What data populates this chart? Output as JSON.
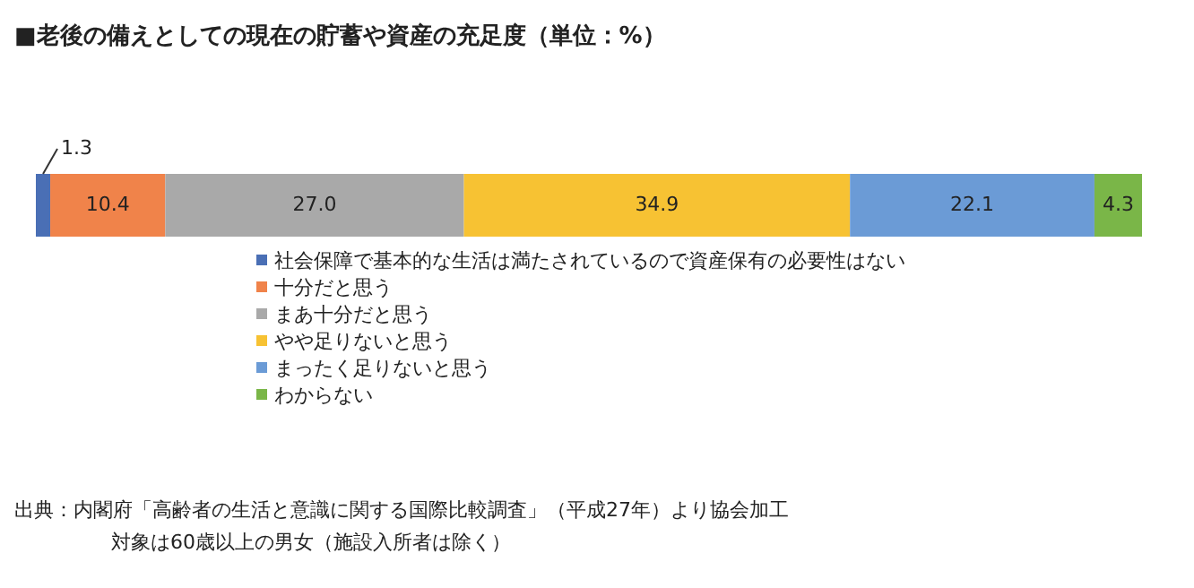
{
  "chart_data": {
    "type": "bar",
    "orientation": "horizontal",
    "stacked": true,
    "legend": "bottom",
    "title": "■老後の備えとしての現在の貯蓄や資産の充足度（単位：%）",
    "categories": [
      null
    ],
    "series": [
      {
        "name": "社会保障で基本的な生活は満たされているので資産保有の必要性はない",
        "color": "#4a6fb5",
        "values": [
          1.3
        ],
        "value_labels": [
          "1.3"
        ]
      },
      {
        "name": "十分だと思う",
        "color": "#f0834a",
        "values": [
          10.4
        ],
        "value_labels": [
          "10.4"
        ]
      },
      {
        "name": "まあ十分だと思う",
        "color": "#a9a9a9",
        "values": [
          27.0
        ],
        "value_labels": [
          "27.0"
        ]
      },
      {
        "name": "やや足りないと思う",
        "color": "#f7c233",
        "values": [
          34.9
        ],
        "value_labels": [
          "34.9"
        ]
      },
      {
        "name": "まったく足りないと思う",
        "color": "#6b9bd6",
        "values": [
          22.1
        ],
        "value_labels": [
          "22.1"
        ]
      },
      {
        "name": "わからない",
        "color": "#7ab648",
        "values": [
          4.3
        ],
        "value_labels": [
          "4.3"
        ]
      }
    ],
    "annotations": [
      "出典：内閣府「高齢者の生活と意識に関する国際比較調査」（平成27年）より協会加工",
      "対象は60歳以上の男女（施設入所者は除く）"
    ]
  }
}
